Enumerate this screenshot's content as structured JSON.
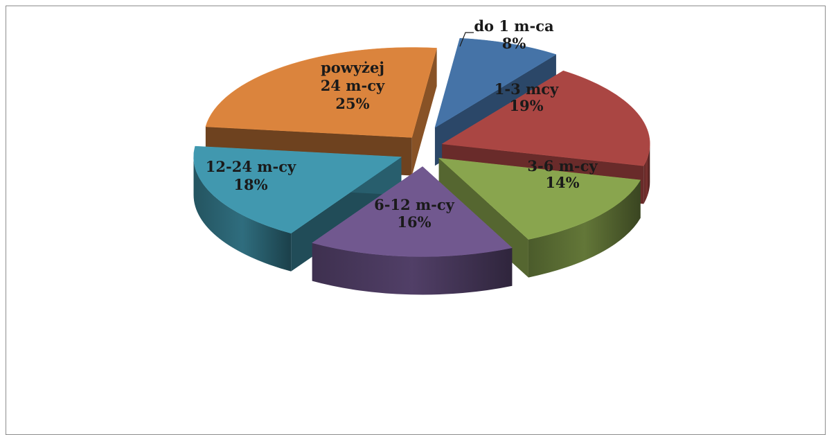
{
  "chart_data": {
    "type": "pie",
    "style": "3d-exploded",
    "title": "",
    "slices": [
      {
        "label": "do 1 m-ca",
        "value": 8,
        "display": "8%",
        "color": "#4573a7"
      },
      {
        "label": "1-3 mcy",
        "value": 19,
        "display": "19%",
        "color": "#aa4643"
      },
      {
        "label": "3-6 m-cy",
        "value": 14,
        "display": "14%",
        "color": "#89a54e"
      },
      {
        "label": "6-12 m-cy",
        "value": 16,
        "display": "16%",
        "color": "#71588f"
      },
      {
        "label": "12-24 m-cy",
        "value": 18,
        "display": "18%",
        "color": "#4198af"
      },
      {
        "label": "powyżej 24 m-cy",
        "value": 25,
        "display": "25%",
        "color": "#db843d"
      }
    ]
  }
}
